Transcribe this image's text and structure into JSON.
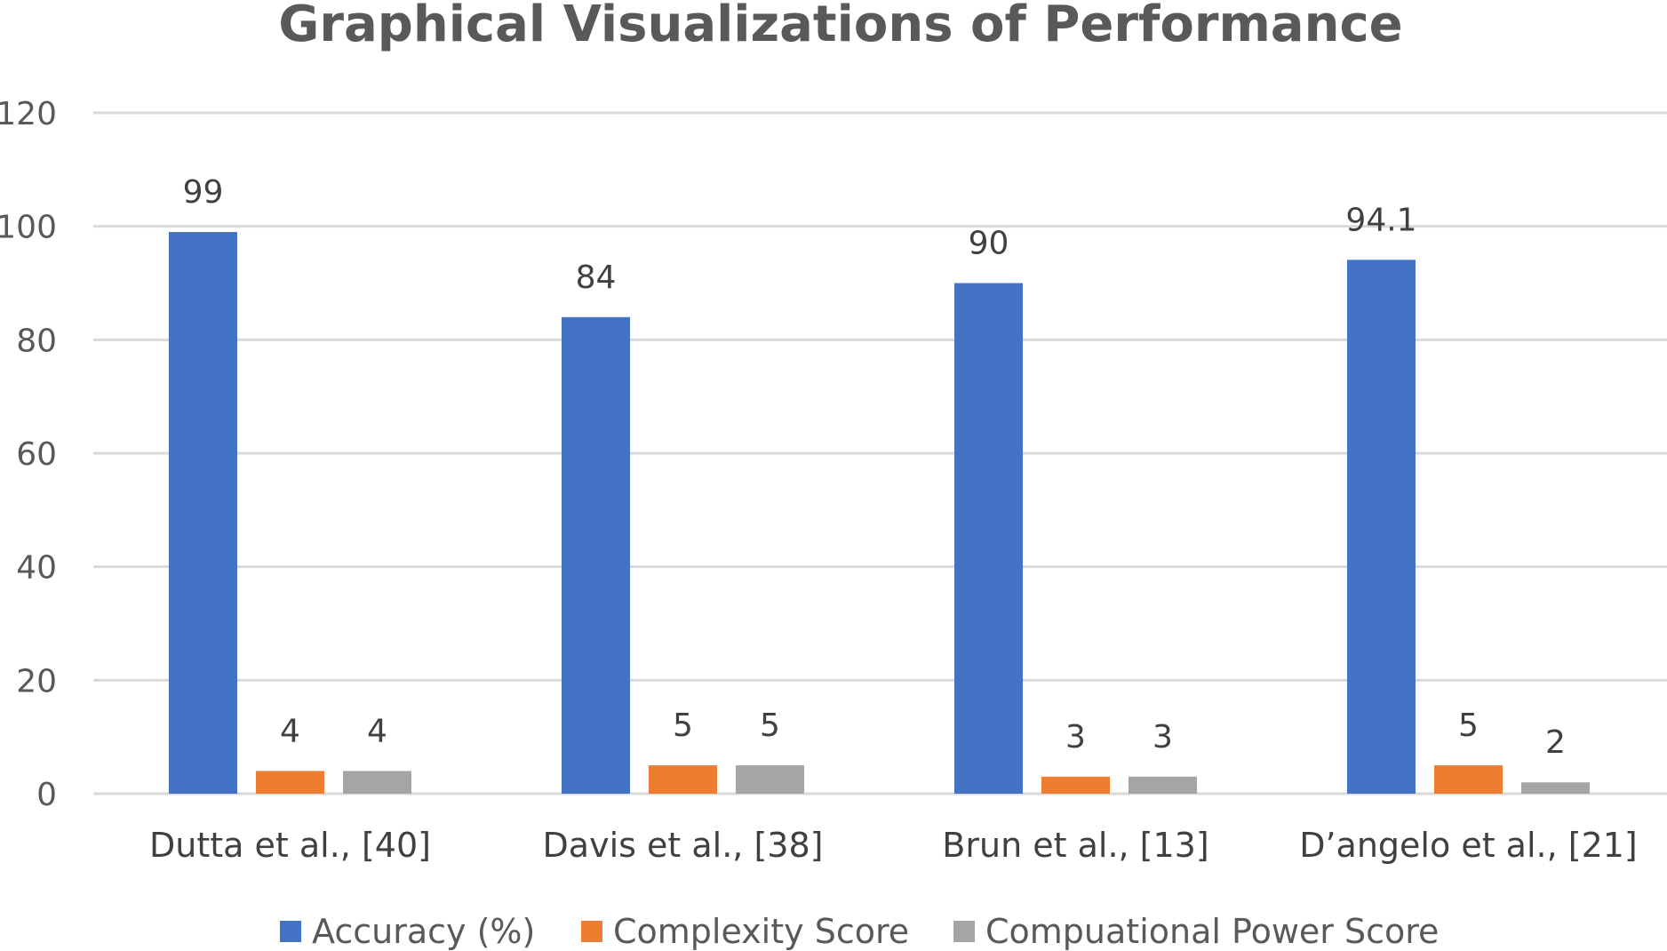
{
  "chart_data": {
    "type": "bar",
    "title": "Graphical Visualizations of Performance",
    "xlabel": "",
    "ylabel": "",
    "ylim": [
      0,
      120
    ],
    "yticks": [
      0,
      20,
      40,
      60,
      80,
      100,
      120
    ],
    "grid": true,
    "legend_position": "bottom",
    "categories": [
      "Dutta et al., [40]",
      "Davis et al., [38]",
      "Brun et al., [13]",
      "D’angelo et al., [21]"
    ],
    "series": [
      {
        "name": "Accuracy (%)",
        "color": "#4472C4",
        "values": [
          99,
          84,
          90,
          94.1
        ],
        "labels": [
          "99",
          "84",
          "90",
          "94.1"
        ]
      },
      {
        "name": "Complexity Score",
        "color": "#ED7D31",
        "values": [
          4,
          5,
          3,
          5
        ],
        "labels": [
          "4",
          "5",
          "3",
          "5"
        ]
      },
      {
        "name": "Compuational Power Score",
        "color": "#A5A5A5",
        "values": [
          4,
          5,
          3,
          2
        ],
        "labels": [
          "4",
          "5",
          "3",
          "2"
        ]
      }
    ]
  }
}
